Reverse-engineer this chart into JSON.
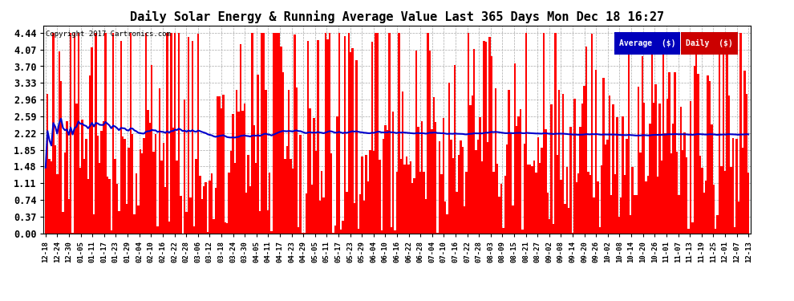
{
  "title": "Daily Solar Energy & Running Average Value Last 365 Days Mon Dec 18 16:27",
  "copyright": "Copyright 2017 Cartronics.com",
  "bar_color": "#ff0000",
  "avg_color": "#0000cc",
  "background_color": "#ffffff",
  "plot_bg_color": "#ffffff",
  "grid_color": "#aaaaaa",
  "yticks": [
    0.0,
    0.37,
    0.74,
    1.11,
    1.48,
    1.85,
    2.22,
    2.59,
    2.96,
    3.33,
    3.7,
    4.07,
    4.44
  ],
  "ylim": [
    0,
    4.6
  ],
  "legend_avg_color": "#0000bb",
  "legend_daily_color": "#cc0000",
  "n_days": 365,
  "title_fontsize": 11,
  "xtick_labels": [
    "12-18",
    "12-24",
    "12-30",
    "01-05",
    "01-11",
    "01-17",
    "01-23",
    "01-29",
    "02-04",
    "02-10",
    "02-16",
    "02-22",
    "02-28",
    "03-06",
    "03-12",
    "03-18",
    "03-24",
    "03-30",
    "04-05",
    "04-11",
    "04-17",
    "04-23",
    "04-29",
    "05-05",
    "05-11",
    "05-17",
    "05-23",
    "05-29",
    "06-04",
    "06-10",
    "06-16",
    "06-22",
    "06-28",
    "07-04",
    "07-10",
    "07-16",
    "07-22",
    "07-28",
    "08-03",
    "08-09",
    "08-15",
    "08-21",
    "08-27",
    "09-02",
    "09-08",
    "09-14",
    "09-20",
    "09-26",
    "10-02",
    "10-08",
    "10-14",
    "10-20",
    "10-26",
    "11-01",
    "11-07",
    "11-13",
    "11-19",
    "11-25",
    "12-01",
    "12-07",
    "12-13"
  ]
}
